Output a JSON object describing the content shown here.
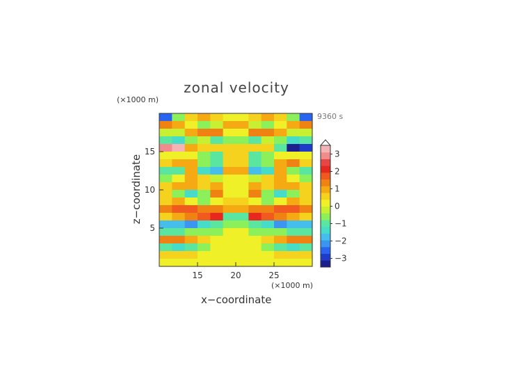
{
  "chart_data": {
    "type": "heatmap",
    "title": "zonal velocity",
    "xlabel": "x−coordinate",
    "ylabel": "z−coordinate",
    "x_unit": "(×1000 m)",
    "z_unit": "(×1000 m)",
    "time_label": "9360 s",
    "xlim": [
      10,
      30
    ],
    "ylim": [
      0,
      20
    ],
    "x_ticks": [
      15,
      20,
      25
    ],
    "y_ticks": [
      5,
      10,
      15
    ],
    "colorbar": {
      "ticks": [
        3,
        2,
        1,
        0,
        -1,
        -2,
        -3
      ],
      "tick_labels": [
        "3",
        "2",
        "1",
        "0",
        "−1",
        "−2",
        "−3"
      ],
      "min": -3.5,
      "max": 3.5,
      "colors": [
        "#1e1e8c",
        "#1e3cc8",
        "#2864f0",
        "#3c96f0",
        "#46beeb",
        "#46dcc8",
        "#5ae6a0",
        "#8cf05a",
        "#c8f032",
        "#f0f028",
        "#f5d21e",
        "#f5aa14",
        "#f08214",
        "#f05a1e",
        "#e6281e",
        "#e64646",
        "#f08c8c",
        "#f5b4b4"
      ]
    },
    "grid": false,
    "rows": [
      {
        "z": 19.5,
        "values": [
          -2.5,
          -0.5,
          0.5,
          0.8,
          0.5,
          0,
          0,
          0.5,
          0.8,
          0.5,
          -0.5,
          -2.5
        ]
      },
      {
        "z": 18.5,
        "values": [
          1.2,
          1.0,
          0.3,
          -0.6,
          -0.3,
          0.8,
          0.8,
          -0.3,
          -0.6,
          0.3,
          1.0,
          1.2
        ]
      },
      {
        "z": 17.5,
        "values": [
          -0.2,
          -0.2,
          1.0,
          1.5,
          1.2,
          0.3,
          0.3,
          1.2,
          1.5,
          1.0,
          -0.2,
          -0.2
        ]
      },
      {
        "z": 16.5,
        "values": [
          -0.8,
          -1.2,
          -0.5,
          -0.2,
          -1.0,
          -0.4,
          -0.4,
          -1.0,
          -0.2,
          -0.5,
          -1.2,
          -0.8
        ]
      },
      {
        "z": 15.5,
        "values": [
          3.0,
          3.3,
          1.0,
          0.5,
          0.5,
          0.7,
          0.7,
          0.5,
          0.5,
          -1.0,
          -3.3,
          -3.0
        ]
      },
      {
        "z": 14.5,
        "values": [
          0.3,
          0.3,
          0.3,
          -0.5,
          -1.0,
          0.5,
          0.5,
          -1.0,
          -0.5,
          0.3,
          0.3,
          0.3
        ]
      },
      {
        "z": 13.5,
        "values": [
          0.6,
          1.1,
          1.0,
          -0.6,
          -1.0,
          0.6,
          0.6,
          -1.1,
          -0.5,
          0.8,
          1.2,
          0.6
        ]
      },
      {
        "z": 12.5,
        "values": [
          -1.0,
          -0.8,
          0.8,
          -1.3,
          -1.6,
          0.8,
          0.8,
          -1.6,
          -1.2,
          0.8,
          -0.7,
          -1.0
        ]
      },
      {
        "z": 11.5,
        "values": [
          -0.5,
          0.3,
          1.0,
          0.4,
          -0.2,
          0.2,
          0.2,
          -0.2,
          0.4,
          1.0,
          0.3,
          -0.5
        ]
      },
      {
        "z": 10.5,
        "values": [
          0.5,
          1.0,
          0.8,
          0.6,
          1.0,
          0.3,
          0.3,
          1.0,
          0.6,
          0.8,
          1.0,
          0.5
        ]
      },
      {
        "z": 9.5,
        "values": [
          0.6,
          -0.6,
          -1.2,
          -0.4,
          1.4,
          0.2,
          0.2,
          1.4,
          -0.4,
          -1.2,
          -0.6,
          0.6
        ]
      },
      {
        "z": 8.5,
        "values": [
          0.5,
          0.8,
          0.0,
          -0.6,
          0.0,
          0.4,
          0.4,
          0.0,
          -0.6,
          0.0,
          0.8,
          0.5
        ]
      },
      {
        "z": 7.5,
        "values": [
          1.2,
          1.6,
          1.7,
          1.4,
          1.2,
          0.8,
          0.8,
          1.2,
          1.4,
          1.7,
          1.6,
          1.2
        ]
      },
      {
        "z": 6.5,
        "values": [
          0.4,
          0.8,
          1.4,
          1.9,
          2.3,
          -1.0,
          -1.0,
          2.3,
          1.9,
          1.4,
          0.8,
          0.4
        ]
      },
      {
        "z": 5.5,
        "values": [
          -1.6,
          -1.8,
          -2.0,
          -1.5,
          -1.0,
          -0.5,
          -0.5,
          -1.0,
          -1.5,
          -2.0,
          -1.8,
          -1.6
        ]
      },
      {
        "z": 4.5,
        "values": [
          -1.0,
          -0.8,
          -0.6,
          -0.4,
          -0.4,
          0.2,
          0.2,
          -0.4,
          -0.4,
          -0.6,
          -0.8,
          -1.0
        ]
      },
      {
        "z": 3.5,
        "values": [
          1.3,
          1.4,
          0.8,
          0.4,
          0.2,
          0.0,
          0.0,
          0.2,
          0.4,
          0.8,
          1.4,
          1.3
        ]
      },
      {
        "z": 2.5,
        "values": [
          -0.8,
          -1.4,
          -1.0,
          -0.4,
          0.1,
          0.0,
          0.0,
          0.1,
          -0.4,
          -1.0,
          -1.4,
          -0.8
        ]
      },
      {
        "z": 1.5,
        "values": [
          0.6,
          0.6,
          0.4,
          0.2,
          0.1,
          0.0,
          0.0,
          0.1,
          0.2,
          0.4,
          0.6,
          0.6
        ]
      },
      {
        "z": 0.5,
        "values": [
          0.2,
          0.2,
          0.1,
          0.0,
          0.0,
          0.0,
          0.0,
          0.0,
          0.0,
          0.1,
          0.2,
          0.2
        ]
      }
    ]
  }
}
